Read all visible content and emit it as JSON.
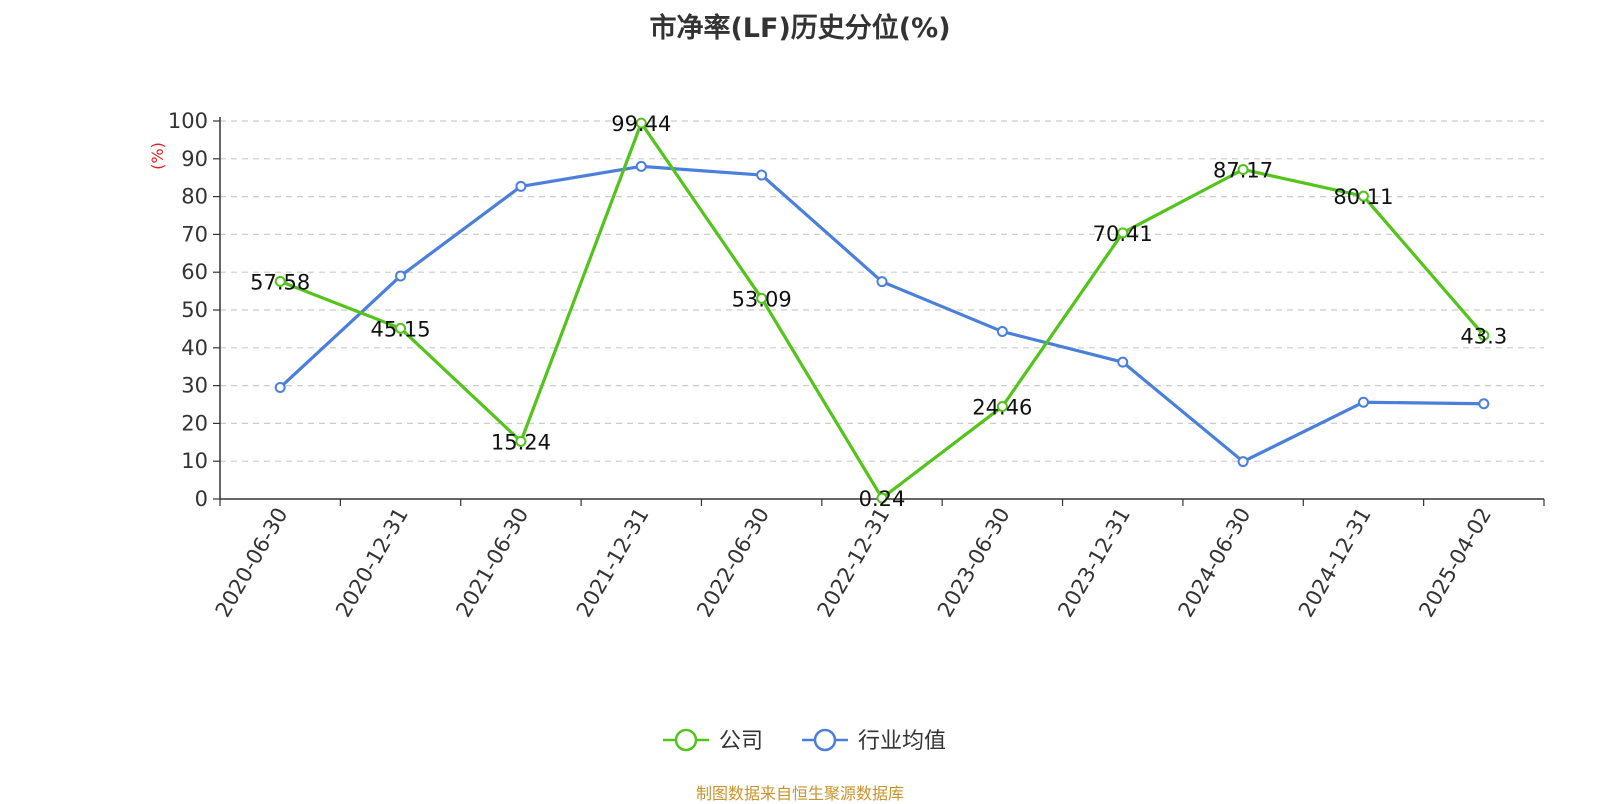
{
  "chart_data": {
    "type": "line",
    "title": "市净率(LF)历史分位(%)",
    "ylabel": "(%)",
    "xlabel": "",
    "ylim": [
      0,
      100
    ],
    "yticks": [
      0,
      10,
      20,
      30,
      40,
      50,
      60,
      70,
      80,
      90,
      100
    ],
    "grid": true,
    "legend_position": "bottom-center",
    "categories": [
      "2020-06-30",
      "2020-12-31",
      "2021-06-30",
      "2021-12-31",
      "2022-06-30",
      "2022-12-31",
      "2023-06-30",
      "2023-12-31",
      "2024-06-30",
      "2024-12-31",
      "2025-04-02"
    ],
    "series": [
      {
        "name": "公司",
        "color": "#52c41a",
        "show_labels": true,
        "values": [
          57.58,
          45.15,
          15.24,
          99.44,
          53.09,
          0.24,
          24.46,
          70.41,
          87.17,
          80.11,
          43.3
        ]
      },
      {
        "name": "行业均值",
        "color": "#4a7fdc",
        "show_labels": false,
        "values": [
          29.5,
          59,
          82.7,
          88,
          85.7,
          57.5,
          44.3,
          36.2,
          9.9,
          25.6,
          25.2
        ]
      }
    ]
  },
  "footer": {
    "source": "制图数据来自恒生聚源数据库"
  }
}
